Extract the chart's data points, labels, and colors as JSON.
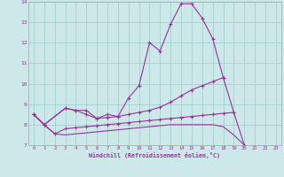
{
  "xlabel": "Windchill (Refroidissement éolien,°C)",
  "background_color": "#cce8e8",
  "line_color": "#993399",
  "x_values": [
    0,
    1,
    2,
    3,
    4,
    5,
    6,
    7,
    8,
    9,
    10,
    11,
    12,
    13,
    14,
    15,
    16,
    17,
    18,
    19,
    20,
    21,
    22,
    23
  ],
  "line1": [
    8.5,
    8.0,
    null,
    8.8,
    8.7,
    8.7,
    8.3,
    8.5,
    8.4,
    9.3,
    9.9,
    12.0,
    11.6,
    12.9,
    13.9,
    13.9,
    13.2,
    12.2,
    10.3,
    null,
    null,
    null,
    null,
    null
  ],
  "line2": [
    8.5,
    8.0,
    null,
    8.8,
    8.7,
    8.5,
    8.3,
    8.35,
    8.4,
    8.5,
    8.6,
    8.7,
    8.85,
    9.1,
    9.4,
    9.7,
    9.9,
    10.1,
    10.3,
    8.6,
    null,
    null,
    null,
    null
  ],
  "line3": [
    8.5,
    8.0,
    7.55,
    7.8,
    7.85,
    7.9,
    7.95,
    8.0,
    8.05,
    8.1,
    8.15,
    8.2,
    8.25,
    8.3,
    8.35,
    8.4,
    8.45,
    8.5,
    8.55,
    8.6,
    7.0,
    6.8,
    6.75,
    6.65
  ],
  "line4": [
    8.5,
    8.0,
    7.55,
    7.5,
    7.55,
    7.6,
    7.65,
    7.7,
    7.75,
    7.8,
    7.85,
    7.9,
    7.95,
    8.0,
    8.0,
    8.0,
    8.0,
    8.0,
    7.9,
    7.5,
    7.0,
    6.8,
    6.75,
    6.65
  ],
  "ylim": [
    7,
    14
  ],
  "xlim": [
    -0.5,
    23.5
  ],
  "yticks": [
    7,
    8,
    9,
    10,
    11,
    12,
    13,
    14
  ],
  "xticks": [
    0,
    1,
    2,
    3,
    4,
    5,
    6,
    7,
    8,
    9,
    10,
    11,
    12,
    13,
    14,
    15,
    16,
    17,
    18,
    19,
    20,
    21,
    22,
    23
  ]
}
